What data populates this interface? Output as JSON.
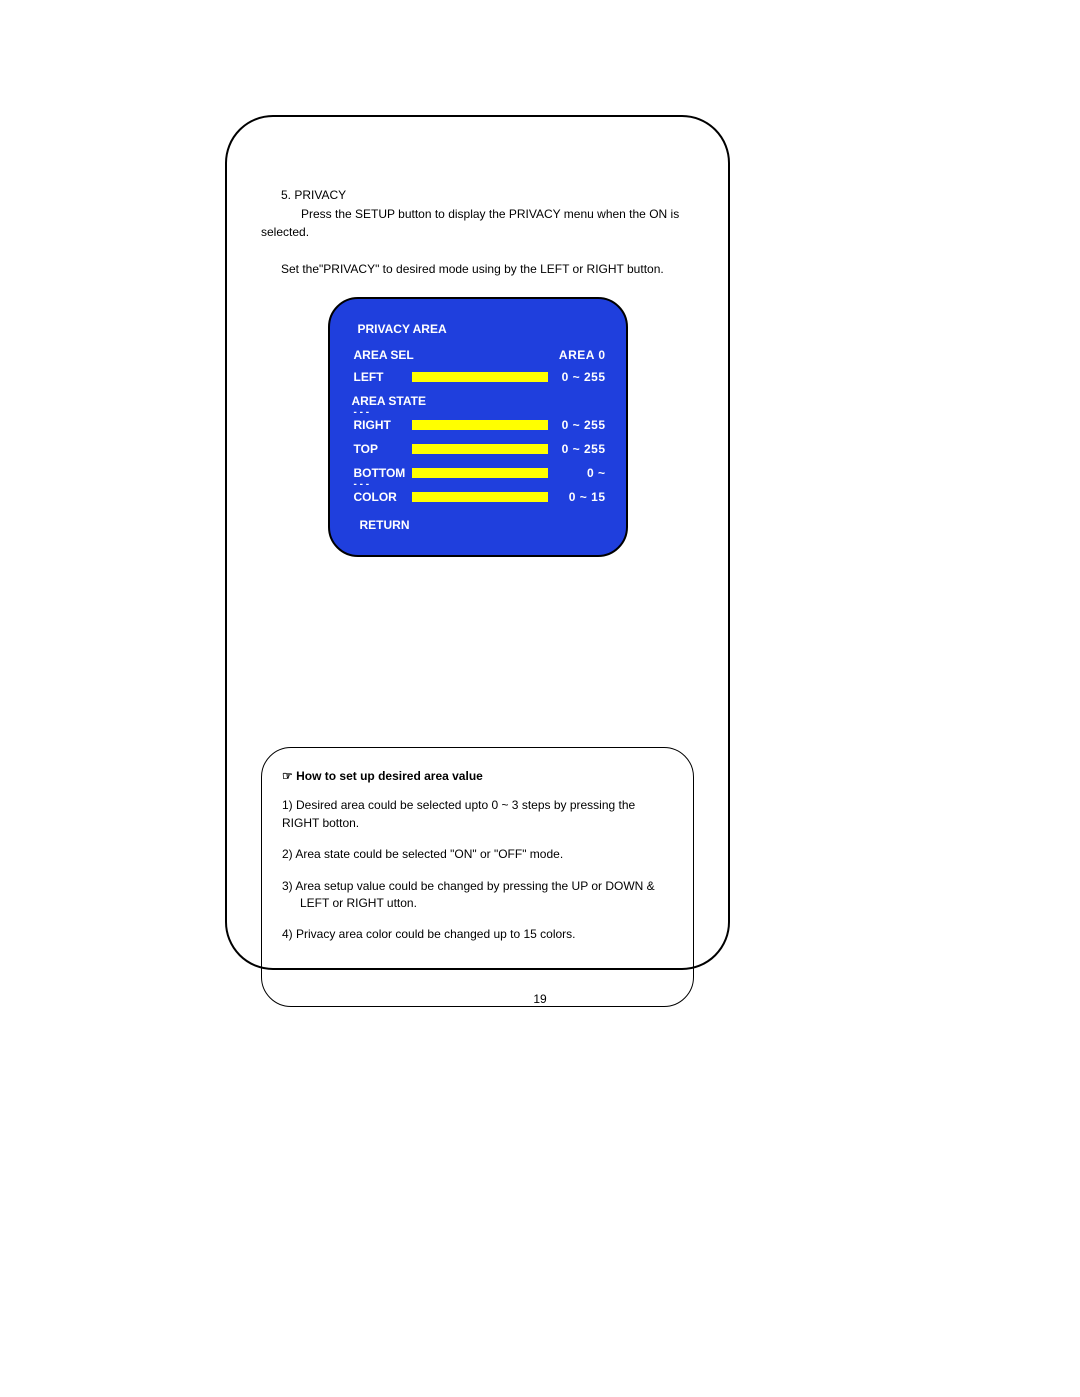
{
  "section": {
    "heading": "5. PRIVACY",
    "para1": "Press the SETUP button to display the PRIVACY menu when the ON is selected.",
    "para2": "Set the\"PRIVACY\" to desired mode using by the LEFT or RIGHT button."
  },
  "menu": {
    "title": "PRIVACY AREA",
    "area_sel_label": "AREA SEL",
    "area_sel_value": "AREA  0",
    "area_state": "AREA STATE",
    "return": "RETURN",
    "rows": {
      "left": {
        "label": "LEFT",
        "value": "0 ~ 255"
      },
      "right": {
        "label": "RIGHT",
        "value": "0 ~ 255"
      },
      "top": {
        "label": "TOP",
        "value": "0 ~ 255"
      },
      "bottom": {
        "label": "BOTTOM",
        "value": "0 ~"
      },
      "color": {
        "label": "COLOR",
        "value": "0 ~ 15"
      }
    },
    "dashes": "- - -",
    "colors": {
      "panel_bg": "#1f3fdd",
      "bar": "#ffff00",
      "text": "#ffffff",
      "border": "#000000"
    }
  },
  "info": {
    "title": "☞  How to set up desired area value",
    "items": [
      "1)  Desired area could be selected upto 0 ~ 3 steps by pressing the RIGHT botton.",
      "2)  Area state could be selected \"ON\" or \"OFF\" mode.",
      "3)  Area setup value could be changed by pressing the UP or DOWN & LEFT or RIGHT utton.",
      "4)  Privacy area color could be changed up to 15 colors."
    ]
  },
  "page_number": "19"
}
